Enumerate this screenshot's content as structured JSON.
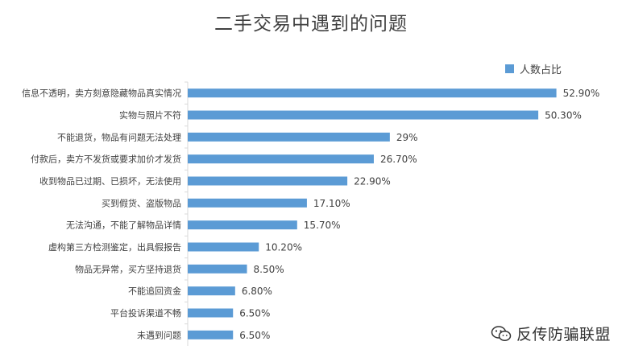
{
  "chart_data": {
    "type": "bar",
    "orientation": "horizontal",
    "title": "二手交易中遇到的问题",
    "legend": "人数占比",
    "legend_position": "top-right",
    "color": "#5b9bd5",
    "xlim": [
      0,
      60
    ],
    "categories": [
      "信息不透明，卖方刻意隐藏物品真实情况",
      "实物与照片不符",
      "不能退货，物品有问题无法处理",
      "付款后，卖方不发货或要求加价才发货",
      "收到物品已过期、已损坏，无法使用",
      "买到假货、盗版物品",
      "无法沟通，不能了解物品详情",
      "虚构第三方检测鉴定，出具假报告",
      "物品无异常，买方坚持退货",
      "不能追回资金",
      "平台投诉渠道不畅",
      "未遇到问题"
    ],
    "values": [
      52.9,
      50.3,
      29,
      26.7,
      22.9,
      17.1,
      15.7,
      10.2,
      8.5,
      6.8,
      6.5,
      6.5
    ],
    "data_labels": [
      "52.90%",
      "50.30%",
      "29%",
      "26.70%",
      "22.90%",
      "17.10%",
      "15.70%",
      "10.20%",
      "8.50%",
      "6.80%",
      "6.50%",
      "6.50%"
    ]
  },
  "watermark": {
    "text": "反传防骗联盟",
    "icon": "wechat-icon"
  }
}
